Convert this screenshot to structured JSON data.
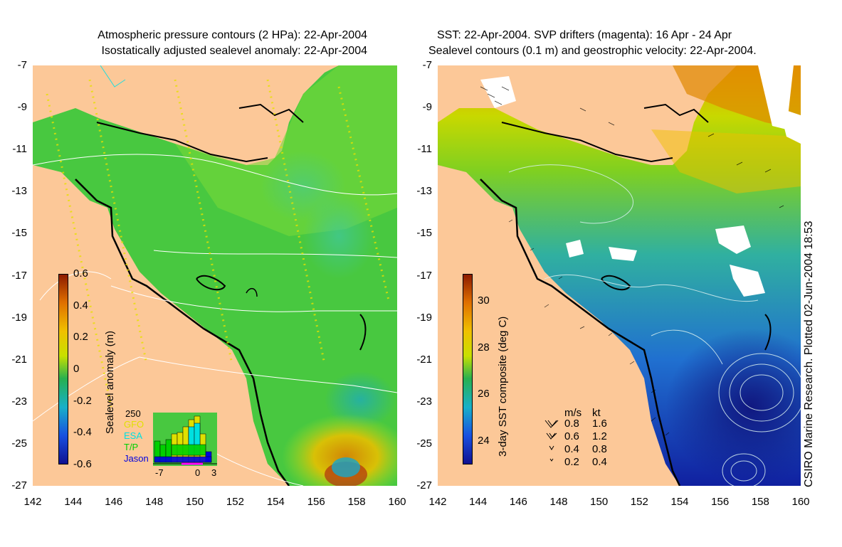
{
  "left_panel": {
    "title_line1": "Atmospheric pressure contours (2 HPa): 22-Apr-2004",
    "title_line2": "Isostatically adjusted sealevel anomaly: 22-Apr-2004",
    "colorbar": {
      "label": "Sealevel anomaly (m)",
      "ticks": [
        "0.6",
        "0.4",
        "0.2",
        "0",
        "-0.2",
        "-0.4",
        "-0.6"
      ],
      "colors": [
        "#8b1a00",
        "#e07000",
        "#f0c000",
        "#c8e000",
        "#28b050",
        "#18b0c8",
        "#1850e0",
        "#101090"
      ]
    },
    "histogram": {
      "ymax_label": "250",
      "legend": [
        {
          "name": "GFO",
          "color": "#e0e000"
        },
        {
          "name": "ESA",
          "color": "#00e0e0"
        },
        {
          "name": "T/P",
          "color": "#00d000"
        },
        {
          "name": "Jason",
          "color": "#0000e0"
        }
      ],
      "x_ticks": [
        "-7",
        "0",
        "3"
      ]
    }
  },
  "right_panel": {
    "title_line1": "SST: 22-Apr-2004. SVP drifters (magenta): 16 Apr - 24 Apr",
    "title_line2": "Sealevel contours (0.1 m) and geostrophic velocity: 22-Apr-2004.",
    "colorbar": {
      "label": "3-day SST composite (deg C)",
      "ticks": [
        "30",
        "28",
        "26",
        "24"
      ],
      "colors": [
        "#8b1a00",
        "#e07000",
        "#f0c000",
        "#c8e000",
        "#28b050",
        "#18b0c8",
        "#1850e0",
        "#101090"
      ]
    },
    "velocity_key": {
      "header_ms": "m/s",
      "header_kt": "kt",
      "rows": [
        {
          "ms": "0.8",
          "kt": "1.6"
        },
        {
          "ms": "0.6",
          "kt": "1.2"
        },
        {
          "ms": "0.4",
          "kt": "0.8"
        },
        {
          "ms": "0.2",
          "kt": "0.4"
        }
      ]
    }
  },
  "axes": {
    "lat_ticks": [
      "-7",
      "-9",
      "-11",
      "-13",
      "-15",
      "-17",
      "-19",
      "-21",
      "-23",
      "-25",
      "-27"
    ],
    "lon_ticks": [
      "142",
      "144",
      "146",
      "148",
      "150",
      "152",
      "154",
      "156",
      "158",
      "160"
    ]
  },
  "credit": "CSIRO Marine Research. Plotted 02-Jun-2004 18:53",
  "colors": {
    "land": "#fcc898",
    "ocean_green": "#38c040",
    "ocean_light": "#80e030",
    "ocean_blue": "#1848c8",
    "ocean_dark": "#102090"
  }
}
